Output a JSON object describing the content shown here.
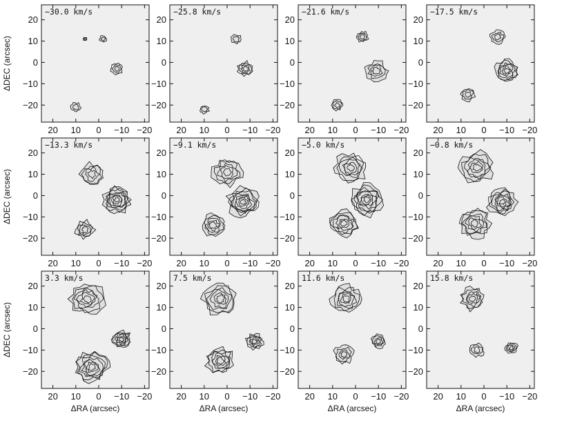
{
  "chart_data": {
    "type": "contour",
    "grid": {
      "rows": 3,
      "cols": 4
    },
    "velocity_unit": "km/s",
    "xlabel": "ΔRA (arcsec)",
    "ylabel": "ΔDEC (arcsec)",
    "xlim": [
      25,
      -22
    ],
    "ylim": [
      -28,
      27
    ],
    "x_ticks": [
      20,
      10,
      0,
      -10,
      -20
    ],
    "y_ticks": [
      20,
      10,
      0,
      -10,
      -20
    ],
    "x_tick_labels": [
      "20",
      "10",
      "0",
      "−10",
      "−20"
    ],
    "y_tick_labels": [
      "20",
      "10",
      "0",
      "−10",
      "−20"
    ],
    "panels": [
      {
        "label": "−30.0 km/s",
        "velocity": -30.0,
        "features": [
          {
            "x": -8,
            "y": -3,
            "r": 2.5,
            "level": 0.35
          },
          {
            "x": 10,
            "y": -21,
            "r": 2.0,
            "level": 0.3
          },
          {
            "x": -2,
            "y": 11,
            "r": 1.5,
            "level": 0.25
          },
          {
            "x": 6,
            "y": 11,
            "r": 0.8,
            "level": 0.2
          }
        ]
      },
      {
        "label": "−25.8 km/s",
        "velocity": -25.8,
        "features": [
          {
            "x": -4,
            "y": 11,
            "r": 2.0,
            "level": 0.3
          },
          {
            "x": -8,
            "y": -3,
            "r": 3.2,
            "level": 0.45
          },
          {
            "x": 10,
            "y": -22,
            "r": 2.0,
            "level": 0.3
          }
        ]
      },
      {
        "label": "−21.6 km/s",
        "velocity": -21.6,
        "features": [
          {
            "x": -3,
            "y": 12,
            "r": 2.4,
            "level": 0.35
          },
          {
            "x": -9,
            "y": -4,
            "r": 4.5,
            "level": 0.55
          },
          {
            "x": 8,
            "y": -20,
            "r": 2.4,
            "level": 0.35
          }
        ]
      },
      {
        "label": "−17.5 km/s",
        "velocity": -17.5,
        "features": [
          {
            "x": -6,
            "y": 12,
            "r": 3.0,
            "level": 0.4
          },
          {
            "x": -10,
            "y": -4,
            "r": 5.0,
            "level": 0.75
          },
          {
            "x": 7,
            "y": -15,
            "r": 3.0,
            "level": 0.4
          }
        ]
      },
      {
        "label": "−13.3 km/s",
        "velocity": -13.3,
        "features": [
          {
            "x": 3,
            "y": 10,
            "r": 5.0,
            "level": 0.55
          },
          {
            "x": -8,
            "y": -2,
            "r": 6.0,
            "level": 0.95
          },
          {
            "x": 6,
            "y": -16,
            "r": 4.0,
            "level": 0.5
          }
        ]
      },
      {
        "label": "−9.1 km/s",
        "velocity": -9.1,
        "features": [
          {
            "x": 0,
            "y": 11,
            "r": 6.0,
            "level": 0.65
          },
          {
            "x": -7,
            "y": -3,
            "r": 6.5,
            "level": 0.95
          },
          {
            "x": 6,
            "y": -14,
            "r": 5.0,
            "level": 0.6
          }
        ]
      },
      {
        "label": "−5.0 km/s",
        "velocity": -5.0,
        "features": [
          {
            "x": 2,
            "y": 13,
            "r": 6.5,
            "level": 0.7
          },
          {
            "x": -5,
            "y": -2,
            "r": 7.0,
            "level": 0.95
          },
          {
            "x": 5,
            "y": -13,
            "r": 6.0,
            "level": 0.75
          }
        ]
      },
      {
        "label": "−0.8 km/s",
        "velocity": -0.8,
        "features": [
          {
            "x": 3,
            "y": 13,
            "r": 7.0,
            "level": 0.75
          },
          {
            "x": -8,
            "y": -3,
            "r": 6.0,
            "level": 0.85
          },
          {
            "x": 4,
            "y": -13,
            "r": 6.5,
            "level": 0.8
          }
        ]
      },
      {
        "label": "3.3 km/s",
        "velocity": 3.3,
        "features": [
          {
            "x": 5,
            "y": 14,
            "r": 7.0,
            "level": 0.8
          },
          {
            "x": -10,
            "y": -5,
            "r": 4.0,
            "level": 0.75
          },
          {
            "x": 3,
            "y": -18,
            "r": 7.0,
            "level": 0.85
          }
        ]
      },
      {
        "label": "7.5 km/s",
        "velocity": 7.5,
        "features": [
          {
            "x": 3,
            "y": 14,
            "r": 7.0,
            "level": 0.8
          },
          {
            "x": -12,
            "y": -6,
            "r": 3.5,
            "level": 0.6
          },
          {
            "x": 3,
            "y": -15,
            "r": 6.0,
            "level": 0.75
          }
        ]
      },
      {
        "label": "11.6 km/s",
        "velocity": 11.6,
        "features": [
          {
            "x": 4,
            "y": 14,
            "r": 6.0,
            "level": 0.7
          },
          {
            "x": -10,
            "y": -6,
            "r": 3.0,
            "level": 0.55
          },
          {
            "x": 5,
            "y": -12,
            "r": 4.0,
            "level": 0.5
          }
        ]
      },
      {
        "label": "15.8 km/s",
        "velocity": 15.8,
        "features": [
          {
            "x": 5,
            "y": 14,
            "r": 5.0,
            "level": 0.6
          },
          {
            "x": -12,
            "y": -9,
            "r": 2.5,
            "level": 0.45
          },
          {
            "x": 3,
            "y": -10,
            "r": 3.0,
            "level": 0.4
          }
        ]
      }
    ]
  }
}
